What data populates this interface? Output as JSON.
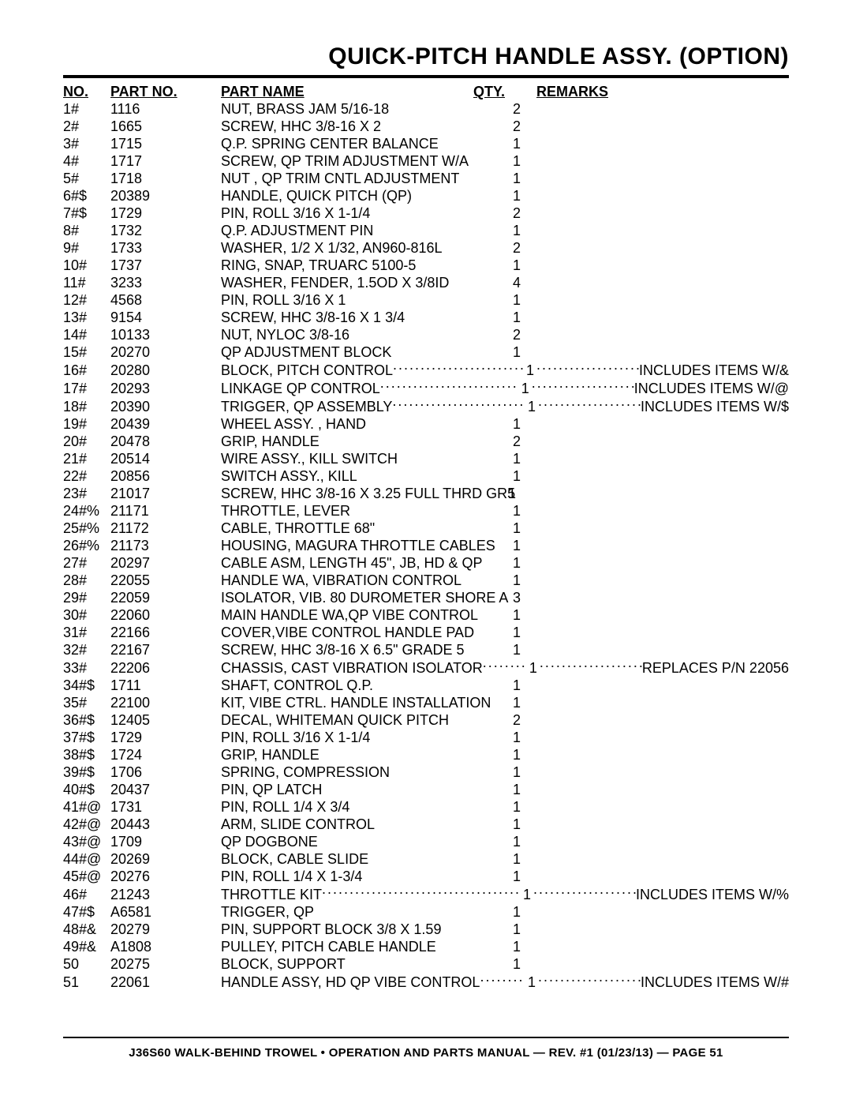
{
  "title": "QUICK-PITCH HANDLE ASSY. (OPTION)",
  "columns": {
    "no": "NO.",
    "partno": "PART NO.",
    "name": "PART NAME",
    "qty": "QTY.",
    "remarks": "REMARKS"
  },
  "rows": [
    {
      "no": "1#",
      "pn": "1116",
      "nm": "NUT, BRASS JAM 5/16-18",
      "qty": "2",
      "rk": ""
    },
    {
      "no": "2#",
      "pn": "1665",
      "nm": "SCREW, HHC 3/8-16 X 2",
      "qty": "2",
      "rk": ""
    },
    {
      "no": "3#",
      "pn": "1715",
      "nm": "Q.P. SPRING CENTER BALANCE",
      "qty": "1",
      "rk": ""
    },
    {
      "no": "4#",
      "pn": "1717",
      "nm": "SCREW, QP TRIM ADJUSTMENT W/A",
      "qty": "1",
      "rk": ""
    },
    {
      "no": "5#",
      "pn": "1718",
      "nm": "NUT , QP TRIM CNTL ADJUSTMENT",
      "qty": "1",
      "rk": ""
    },
    {
      "no": "6#$",
      "pn": "20389",
      "nm": "HANDLE, QUICK PITCH (QP)",
      "qty": "1",
      "rk": ""
    },
    {
      "no": "7#$",
      "pn": "1729",
      "nm": "PIN, ROLL 3/16 X 1-1/4",
      "qty": "2",
      "rk": ""
    },
    {
      "no": "8#",
      "pn": "1732",
      "nm": "Q.P. ADJUSTMENT PIN",
      "qty": "1",
      "rk": ""
    },
    {
      "no": "9#",
      "pn": "1733",
      "nm": "WASHER, 1/2 X 1/32, AN960-816L",
      "qty": "2",
      "rk": ""
    },
    {
      "no": "10#",
      "pn": "1737",
      "nm": "RING, SNAP, TRUARC 5100-5",
      "qty": "1",
      "rk": ""
    },
    {
      "no": "11#",
      "pn": "3233",
      "nm": "WASHER, FENDER, 1.5OD X 3/8ID",
      "qty": "4",
      "rk": ""
    },
    {
      "no": "12#",
      "pn": "4568",
      "nm": "PIN, ROLL 3/16 X 1",
      "qty": "1",
      "rk": ""
    },
    {
      "no": "13#",
      "pn": "9154",
      "nm": "SCREW, HHC 3/8-16 X 1 3/4",
      "qty": "1",
      "rk": ""
    },
    {
      "no": "14#",
      "pn": "10133",
      "nm": "NUT, NYLOC 3/8-16",
      "qty": "2",
      "rk": ""
    },
    {
      "no": "15#",
      "pn": "20270",
      "nm": "QP ADJUSTMENT BLOCK",
      "qty": "1",
      "rk": ""
    },
    {
      "no": "16#",
      "pn": "20280",
      "nm": "BLOCK, PITCH CONTROL",
      "qty": "1",
      "rk": "INCLUDES ITEMS W/&",
      "leader": true
    },
    {
      "no": "17#",
      "pn": "20293",
      "nm": "LINKAGE QP CONTROL",
      "qty": "1",
      "rk": "INCLUDES ITEMS W/@",
      "leader": true
    },
    {
      "no": "18#",
      "pn": "20390",
      "nm": "TRIGGER, QP ASSEMBLY",
      "qty": "1",
      "rk": "INCLUDES ITEMS W/$",
      "leader": true
    },
    {
      "no": "19#",
      "pn": "20439",
      "nm": "WHEEL ASSY. , HAND",
      "qty": "1",
      "rk": ""
    },
    {
      "no": "20#",
      "pn": "20478",
      "nm": "GRIP, HANDLE",
      "qty": "2",
      "rk": ""
    },
    {
      "no": "21#",
      "pn": "20514",
      "nm": "WIRE ASSY., KILL SWITCH",
      "qty": "1",
      "rk": ""
    },
    {
      "no": "22#",
      "pn": "20856",
      "nm": "SWITCH ASSY., KILL",
      "qty": "1",
      "rk": ""
    },
    {
      "no": "23#",
      "pn": "21017",
      "nm": "SCREW, HHC 3/8-16 X 3.25 FULL THRD GR5",
      "qty": "1",
      "rk": "",
      "tight": true
    },
    {
      "no": "24#%",
      "pn": "21171",
      "nm": "THROTTLE, LEVER",
      "qty": "1",
      "rk": ""
    },
    {
      "no": "25#%",
      "pn": "21172",
      "nm": "CABLE, THROTTLE 68\"",
      "qty": "1",
      "rk": ""
    },
    {
      "no": "26#%",
      "pn": "21173",
      "nm": "HOUSING, MAGURA THROTTLE CABLES",
      "qty": "1",
      "rk": ""
    },
    {
      "no": "27#",
      "pn": "20297",
      "nm": "CABLE ASM, LENGTH 45\", JB, HD & QP",
      "qty": "1",
      "rk": ""
    },
    {
      "no": "28#",
      "pn": "22055",
      "nm": "HANDLE WA, VIBRATION CONTROL",
      "qty": "1",
      "rk": ""
    },
    {
      "no": "29#",
      "pn": "22059",
      "nm": "ISOLATOR, VIB. 80 DUROMETER SHORE A",
      "qty": "3",
      "rk": ""
    },
    {
      "no": "30#",
      "pn": "22060",
      "nm": "MAIN HANDLE WA,QP VIBE CONTROL",
      "qty": "1",
      "rk": ""
    },
    {
      "no": "31#",
      "pn": "22166",
      "nm": "COVER,VIBE CONTROL HANDLE PAD",
      "qty": "1",
      "rk": ""
    },
    {
      "no": "32#",
      "pn": "22167",
      "nm": "SCREW, HHC 3/8-16 X 6.5\" GRADE 5",
      "qty": "1",
      "rk": ""
    },
    {
      "no": "33#",
      "pn": "22206",
      "nm": "CHASSIS, CAST VIBRATION ISOLATOR",
      "qty": "1",
      "rk": "REPLACES P/N 22056",
      "leader": true
    },
    {
      "no": "34#$",
      "pn": "1711",
      "nm": "SHAFT, CONTROL Q.P.",
      "qty": "1",
      "rk": ""
    },
    {
      "no": "35#",
      "pn": "22100",
      "nm": "KIT, VIBE CTRL. HANDLE INSTALLATION",
      "qty": "1",
      "rk": ""
    },
    {
      "no": "36#$",
      "pn": "12405",
      "nm": "DECAL, WHITEMAN QUICK PITCH",
      "qty": "2",
      "rk": ""
    },
    {
      "no": "37#$",
      "pn": "1729",
      "nm": "PIN, ROLL 3/16 X 1-1/4",
      "qty": "1",
      "rk": ""
    },
    {
      "no": "38#$",
      "pn": "1724",
      "nm": "GRIP, HANDLE",
      "qty": "1",
      "rk": ""
    },
    {
      "no": "39#$",
      "pn": "1706",
      "nm": "SPRING, COMPRESSION",
      "qty": "1",
      "rk": ""
    },
    {
      "no": "40#$",
      "pn": "20437",
      "nm": "PIN, QP LATCH",
      "qty": "1",
      "rk": ""
    },
    {
      "no": "41#@",
      "pn": "1731",
      "nm": "PIN, ROLL 1/4 X 3/4",
      "qty": "1",
      "rk": ""
    },
    {
      "no": "42#@",
      "pn": "20443",
      "nm": "ARM, SLIDE CONTROL",
      "qty": "1",
      "rk": ""
    },
    {
      "no": "43#@",
      "pn": "1709",
      "nm": "QP DOGBONE",
      "qty": "1",
      "rk": ""
    },
    {
      "no": "44#@",
      "pn": "20269",
      "nm": "BLOCK, CABLE SLIDE",
      "qty": "1",
      "rk": ""
    },
    {
      "no": "45#@",
      "pn": "20276",
      "nm": "PIN, ROLL 1/4 X 1-3/4",
      "qty": "1",
      "rk": ""
    },
    {
      "no": "46#",
      "pn": "21243",
      "nm": "THROTTLE KIT",
      "qty": "1",
      "rk": "INCLUDES ITEMS W/%",
      "leader": true
    },
    {
      "no": "47#$",
      "pn": "A6581",
      "nm": "TRIGGER, QP",
      "qty": "1",
      "rk": ""
    },
    {
      "no": "48#&",
      "pn": "20279",
      "nm": "PIN, SUPPORT BLOCK 3/8 X 1.59",
      "qty": "1",
      "rk": ""
    },
    {
      "no": "49#&",
      "pn": "A1808",
      "nm": "PULLEY, PITCH CABLE HANDLE",
      "qty": "1",
      "rk": ""
    },
    {
      "no": "50",
      "pn": "20275",
      "nm": "BLOCK, SUPPORT",
      "qty": "1",
      "rk": ""
    },
    {
      "no": "51",
      "pn": "22061",
      "nm": "HANDLE ASSY, HD QP VIBE CONTROL",
      "qty": "1",
      "rk": "INCLUDES ITEMS W/#",
      "leader": true
    }
  ],
  "footer": "J36S60 WALK-BEHIND TROWEL • OPERATION AND PARTS MANUAL — REV. #1 (01/23/13) — PAGE 51"
}
